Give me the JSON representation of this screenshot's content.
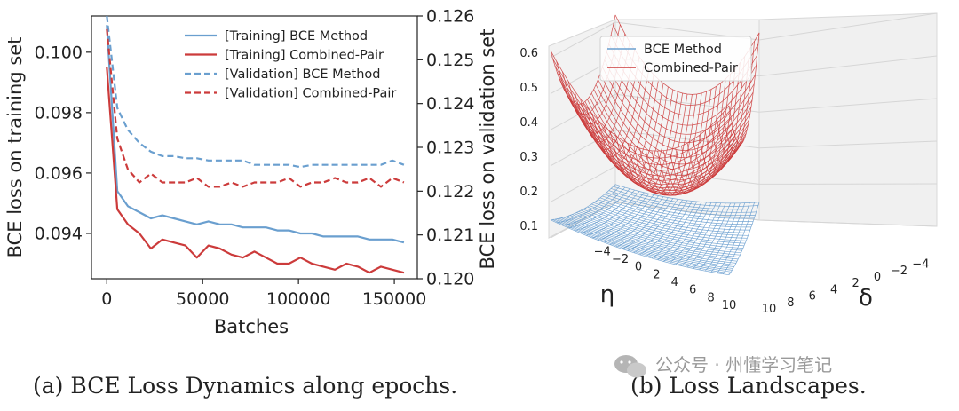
{
  "chart_data": [
    {
      "type": "line",
      "caption": "(a)  BCE Loss Dynamics along epochs.",
      "xlabel": "Batches",
      "ylabel_left": "BCE loss on training set",
      "ylabel_right": "BCE loss on validation set",
      "xlim": [
        -8000,
        162000
      ],
      "ylim_left": [
        0.0925,
        0.1012
      ],
      "ylim_right": [
        0.12,
        0.126
      ],
      "x_ticks": [
        0,
        50000,
        100000,
        150000
      ],
      "x_tick_labels": [
        "0",
        "50000",
        "100000",
        "150000"
      ],
      "y_left_ticks": [
        0.094,
        0.096,
        0.098,
        0.1
      ],
      "y_left_tick_labels": [
        "0.094",
        "0.096",
        "0.098",
        "0.100"
      ],
      "y_right_ticks": [
        0.12,
        0.121,
        0.122,
        0.123,
        0.124,
        0.125,
        0.126
      ],
      "y_right_tick_labels": [
        "0.120",
        "0.121",
        "0.122",
        "0.123",
        "0.124",
        "0.125",
        "0.126"
      ],
      "legend_position": "upper-right",
      "series": [
        {
          "name": "[Training] BCE Method",
          "axis": "left",
          "style": "solid",
          "color": "#6a9fcf",
          "x": [
            0,
            5500,
            11000,
            17000,
            23000,
            29000,
            35000,
            41000,
            47000,
            53000,
            59000,
            65000,
            71000,
            77000,
            83000,
            89000,
            95000,
            101000,
            107000,
            113000,
            119000,
            125000,
            131000,
            137000,
            143000,
            149000,
            155000
          ],
          "values": [
            0.1009,
            0.0954,
            0.0949,
            0.0947,
            0.0945,
            0.0946,
            0.0945,
            0.0944,
            0.0943,
            0.0944,
            0.0943,
            0.0943,
            0.0942,
            0.0942,
            0.0942,
            0.0941,
            0.0941,
            0.094,
            0.094,
            0.0939,
            0.0939,
            0.0939,
            0.0939,
            0.0938,
            0.0938,
            0.0938,
            0.0937
          ]
        },
        {
          "name": "[Training] Combined-Pair",
          "axis": "left",
          "style": "solid",
          "color": "#cc3b3b",
          "x": [
            0,
            5500,
            11000,
            17000,
            23000,
            29000,
            35000,
            41000,
            47000,
            53000,
            59000,
            65000,
            71000,
            77000,
            83000,
            89000,
            95000,
            101000,
            107000,
            113000,
            119000,
            125000,
            131000,
            137000,
            143000,
            149000,
            155000
          ],
          "values": [
            0.0995,
            0.0948,
            0.0943,
            0.094,
            0.0935,
            0.0938,
            0.0937,
            0.0936,
            0.0932,
            0.0936,
            0.0935,
            0.0933,
            0.0932,
            0.0934,
            0.0932,
            0.093,
            0.093,
            0.0932,
            0.093,
            0.0929,
            0.0928,
            0.093,
            0.0929,
            0.0927,
            0.0929,
            0.0928,
            0.0927
          ]
        },
        {
          "name": "[Validation] BCE Method",
          "axis": "right",
          "style": "dashed",
          "color": "#6a9fcf",
          "x": [
            0,
            5500,
            11000,
            17000,
            23000,
            29000,
            35000,
            41000,
            47000,
            53000,
            59000,
            65000,
            71000,
            77000,
            83000,
            89000,
            95000,
            101000,
            107000,
            113000,
            119000,
            125000,
            131000,
            137000,
            143000,
            149000,
            155000
          ],
          "values": [
            0.126,
            0.1239,
            0.1234,
            0.1231,
            0.1229,
            0.1228,
            0.1228,
            0.12275,
            0.12275,
            0.1227,
            0.1227,
            0.1227,
            0.1227,
            0.1226,
            0.1226,
            0.1226,
            0.1226,
            0.12255,
            0.1226,
            0.1226,
            0.1226,
            0.1226,
            0.1226,
            0.1226,
            0.1226,
            0.1227,
            0.1226
          ]
        },
        {
          "name": "[Validation] Combined-Pair",
          "axis": "right",
          "style": "dashed",
          "color": "#cc3b3b",
          "x": [
            0,
            5500,
            11000,
            17000,
            23000,
            29000,
            35000,
            41000,
            47000,
            53000,
            59000,
            65000,
            71000,
            77000,
            83000,
            89000,
            95000,
            101000,
            107000,
            113000,
            119000,
            125000,
            131000,
            137000,
            143000,
            149000,
            155000
          ],
          "values": [
            0.1257,
            0.1232,
            0.1225,
            0.1222,
            0.1224,
            0.1222,
            0.1222,
            0.1222,
            0.1223,
            0.1221,
            0.1221,
            0.1222,
            0.1221,
            0.1222,
            0.1222,
            0.1222,
            0.1223,
            0.1221,
            0.1222,
            0.1222,
            0.1223,
            0.1222,
            0.1222,
            0.1223,
            0.1221,
            0.1223,
            0.1222
          ]
        }
      ]
    },
    {
      "type": "surface3d",
      "caption": "(b)  Loss Landscapes.",
      "xlabel": "δ",
      "ylabel": "η",
      "xlim": [
        -5,
        10
      ],
      "ylim": [
        -5,
        10
      ],
      "zlim": [
        0.1,
        0.6
      ],
      "x_ticks": [
        -4,
        -2,
        0,
        2,
        4,
        6,
        8,
        10
      ],
      "x_tick_labels": [
        "−4",
        "−2",
        "0",
        "2",
        "4",
        "6",
        "8",
        "10"
      ],
      "y_ticks": [
        -4,
        -2,
        0,
        2,
        4,
        6,
        8,
        10
      ],
      "y_tick_labels": [
        "−4",
        "−2",
        "0",
        "2",
        "4",
        "6",
        "8",
        "10"
      ],
      "z_ticks": [
        0.1,
        0.2,
        0.3,
        0.4,
        0.5,
        0.6
      ],
      "z_tick_labels": [
        "0.1",
        "0.2",
        "0.3",
        "0.4",
        "0.5",
        "0.6"
      ],
      "legend_position": "upper-left",
      "series": [
        {
          "name": "BCE Method",
          "color": "#6a9fcf",
          "z_min": 0.11,
          "z_max": 0.15
        },
        {
          "name": "Combined-Pair",
          "color": "#cc3b3b",
          "z_min": 0.23,
          "z_max": 0.62
        }
      ]
    }
  ],
  "watermark": "公众号 · 州懂学习笔记"
}
